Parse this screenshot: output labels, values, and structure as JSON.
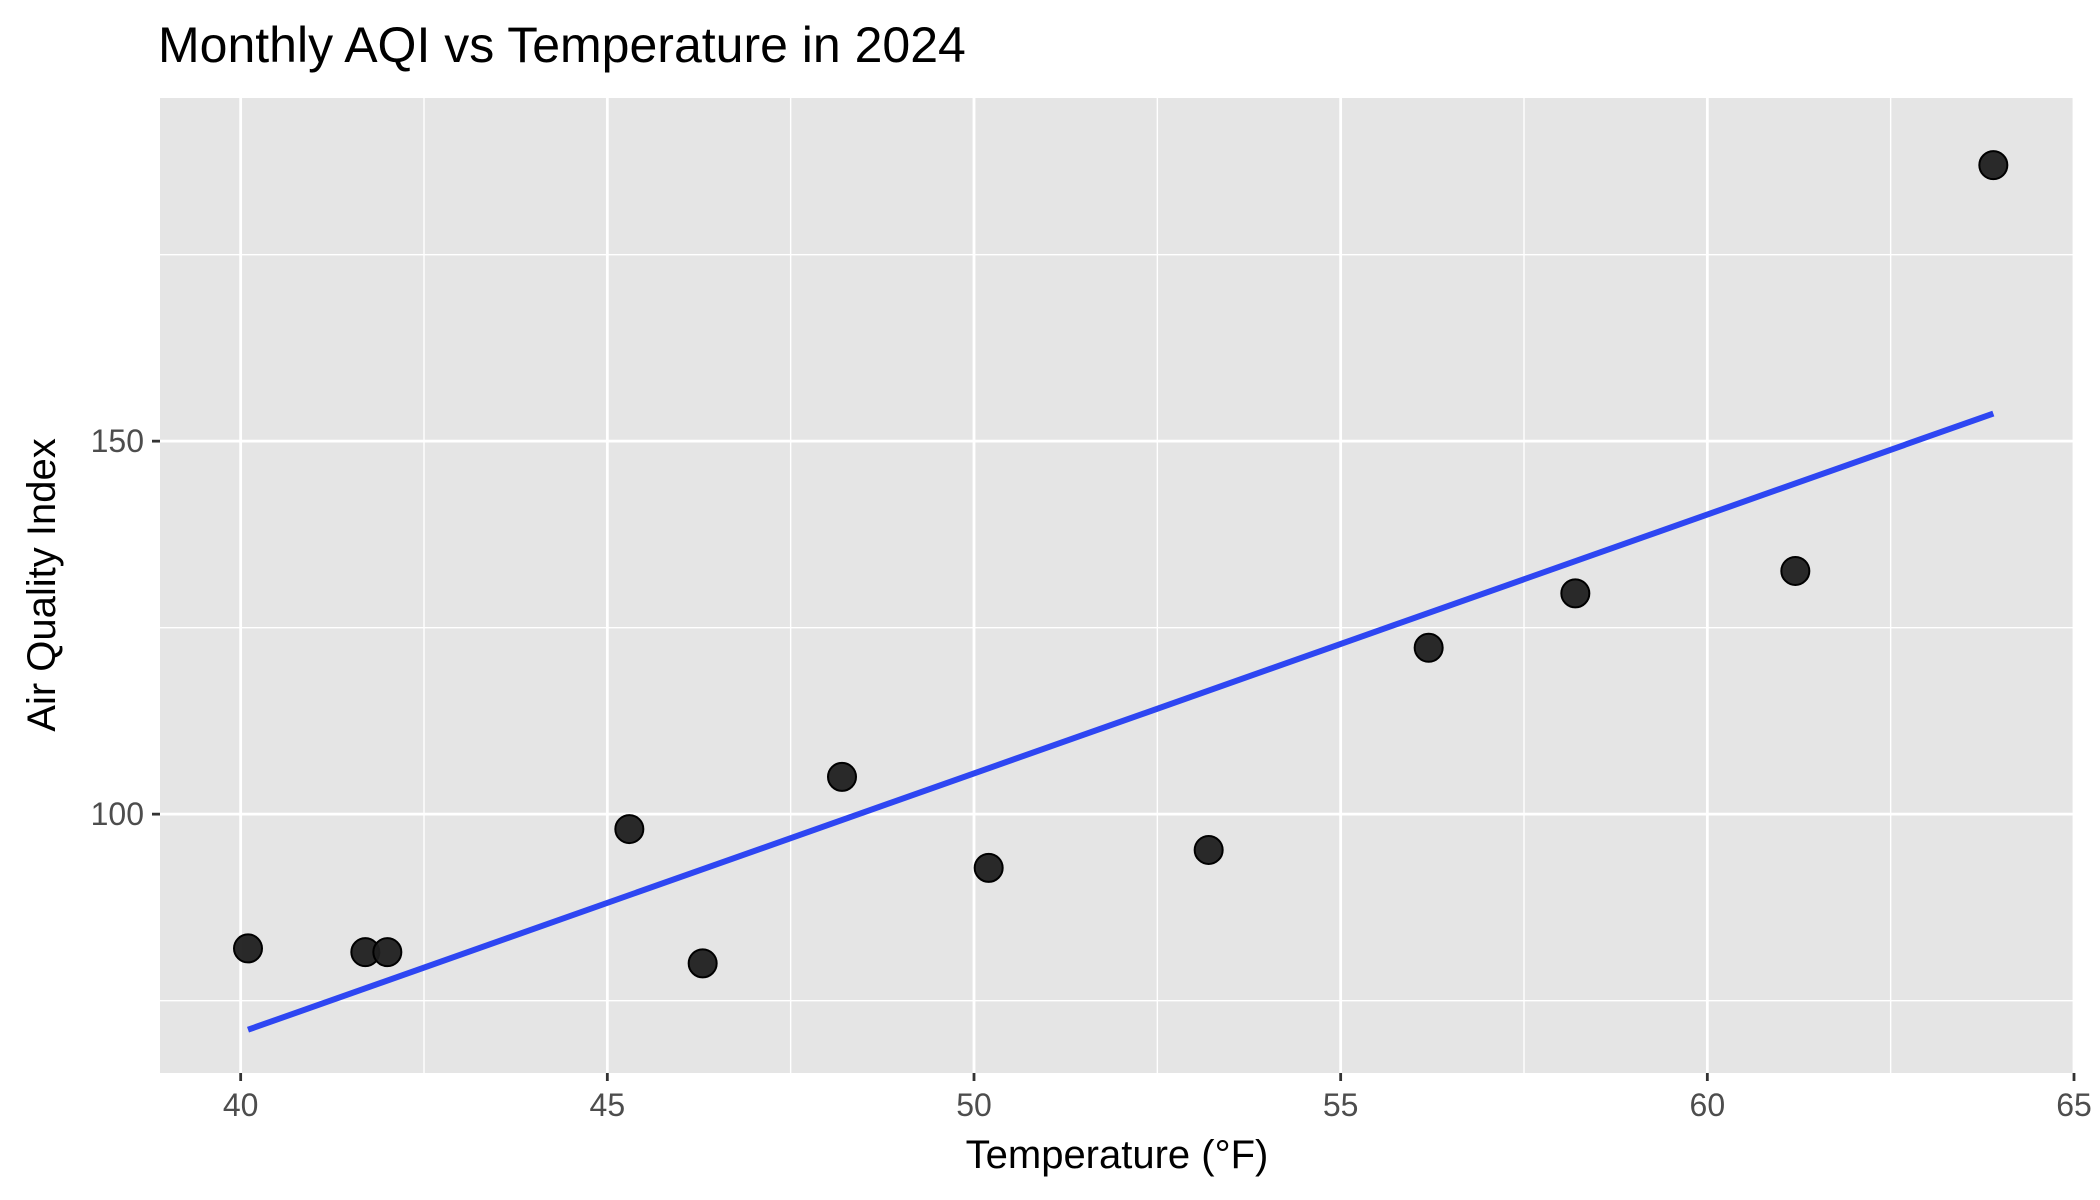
{
  "chart_data": {
    "type": "scatter",
    "title": "Monthly AQI vs Temperature in 2024",
    "xlabel": "Temperature (°F)",
    "ylabel": "Air Quality Index",
    "xlim": [
      38.9,
      65
    ],
    "ylim": [
      65.3,
      196
    ],
    "x_ticks": [
      40,
      45,
      50,
      55,
      60,
      65
    ],
    "x_tick_labels": [
      "40",
      "45",
      "50",
      "55",
      "60",
      "65"
    ],
    "y_ticks": [
      100,
      150
    ],
    "y_tick_labels": [
      "100",
      "150"
    ],
    "x_minor_ticks": [
      42.5,
      47.5,
      52.5,
      57.5,
      62.5
    ],
    "y_minor_ticks": [
      75,
      125,
      175
    ],
    "grid": true,
    "legend": "none",
    "points": [
      {
        "x": 40.1,
        "y": 82.0
      },
      {
        "x": 41.7,
        "y": 81.5
      },
      {
        "x": 42.0,
        "y": 81.5
      },
      {
        "x": 45.3,
        "y": 98.0
      },
      {
        "x": 46.3,
        "y": 80.0
      },
      {
        "x": 48.2,
        "y": 105.0
      },
      {
        "x": 50.2,
        "y": 92.8
      },
      {
        "x": 53.2,
        "y": 95.2
      },
      {
        "x": 56.2,
        "y": 122.3
      },
      {
        "x": 58.2,
        "y": 129.6
      },
      {
        "x": 61.2,
        "y": 132.6
      },
      {
        "x": 63.9,
        "y": 187.0
      }
    ],
    "trend_line": {
      "x": [
        40.1,
        63.9
      ],
      "y": [
        71.1,
        153.7
      ]
    },
    "colors": {
      "panel": "#e5e5e5",
      "grid": "#ffffff",
      "point_fill": "#1f1f1f",
      "point_stroke": "#000000",
      "trend": "#2e46f2",
      "tick_mark": "#333333"
    }
  }
}
